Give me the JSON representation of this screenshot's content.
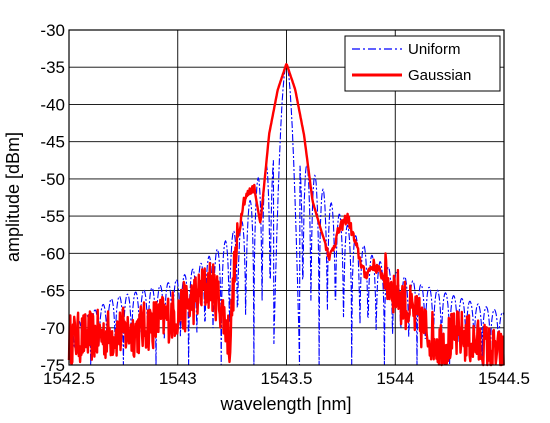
{
  "chart_data": {
    "type": "line",
    "xlabel": "wavelength [nm]",
    "ylabel": "amplitude [dBm]",
    "xlim": [
      1542.5,
      1544.5
    ],
    "ylim": [
      -75,
      -30
    ],
    "xticks": [
      "1542.5",
      "1543",
      "1543.5",
      "1544",
      "1544.5"
    ],
    "yticks": [
      "-30",
      "-35",
      "-40",
      "-45",
      "-50",
      "-55",
      "-60",
      "-65",
      "-70",
      "-75"
    ],
    "grid": true,
    "legend_position": "top-right",
    "series": [
      {
        "name": "Uniform",
        "color": "#0000ff",
        "style": "dash-dot",
        "peak": {
          "x": 1543.5,
          "y": -34.8
        },
        "main_lobe_nulls": [
          1543.44,
          1543.56
        ],
        "sidelobe_spacing": 0.0375,
        "x": [
          1542.5,
          1542.7,
          1542.9,
          1543.0,
          1543.1,
          1543.2,
          1543.3,
          1543.38,
          1543.44,
          1543.5,
          1543.56,
          1543.62,
          1543.7,
          1543.8,
          1543.9,
          1544.0,
          1544.1,
          1544.3,
          1544.5
        ],
        "y": [
          -70,
          -66,
          -64.5,
          -63.5,
          -61.5,
          -59,
          -55.5,
          -49,
          -47,
          -34.8,
          -47,
          -49,
          -53,
          -57,
          -60.5,
          -62.5,
          -64,
          -66,
          -68
        ]
      },
      {
        "name": "Gaussian",
        "color": "#ff0000",
        "style": "solid",
        "peak": {
          "x": 1543.5,
          "y": -34.5
        },
        "x": [
          1542.5,
          1542.8,
          1543.0,
          1543.1,
          1543.15,
          1543.2,
          1543.24,
          1543.26,
          1543.3,
          1543.35,
          1543.38,
          1543.42,
          1543.46,
          1543.5,
          1543.54,
          1543.58,
          1543.62,
          1543.66,
          1543.7,
          1543.74,
          1543.78,
          1543.82,
          1543.86,
          1543.9,
          1544.0,
          1544.1,
          1544.2,
          1544.3,
          1544.5
        ],
        "y": [
          -71.5,
          -70.5,
          -68,
          -65.5,
          -64,
          -67,
          -72,
          -62.5,
          -53,
          -51,
          -56,
          -44,
          -38,
          -34.5,
          -38,
          -44,
          -53,
          -57,
          -60.5,
          -57,
          -55,
          -59,
          -63,
          -61.5,
          -65,
          -69,
          -72,
          -71,
          -74
        ]
      }
    ]
  }
}
